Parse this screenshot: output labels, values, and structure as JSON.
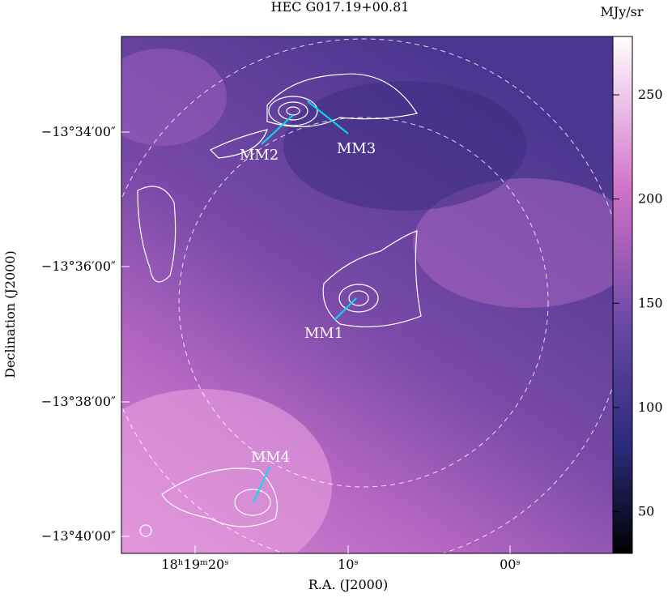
{
  "header": {
    "title": "HEC G017.19+00.81",
    "unit": "MJy/sr"
  },
  "axes": {
    "x_label": "R.A. (J2000)",
    "y_label": "Declination (J2000)",
    "x_ticks": [
      "18ʰ19ᵐ20ˢ",
      "10ˢ",
      "00ˢ"
    ],
    "y_ticks": [
      "−13°34′00″",
      "−13°36′00″",
      "−13°38′00″",
      "−13°40′00″"
    ]
  },
  "colorbar": {
    "lim": [
      30,
      278
    ],
    "ticks": [
      50,
      100,
      150,
      200,
      250
    ]
  },
  "sources": [
    "MM1",
    "MM2",
    "MM3",
    "MM4"
  ]
}
